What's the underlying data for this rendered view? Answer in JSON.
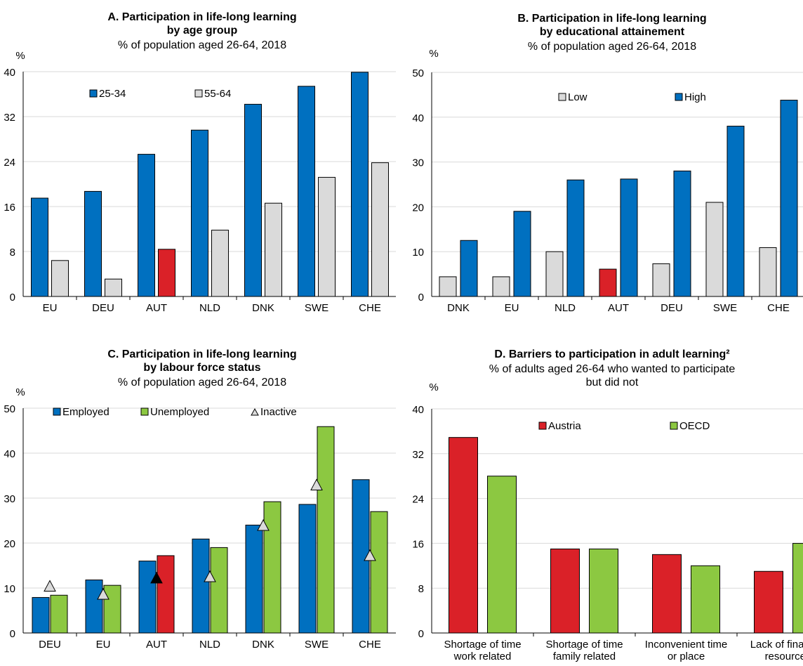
{
  "colors": {
    "blue": "#0070C0",
    "grey": "#DADADA",
    "red": "#DA2128",
    "green": "#8CC841",
    "black": "#000000",
    "gridline": "#D9D9D9",
    "axis": "#000000"
  },
  "chart_data": [
    {
      "id": "A",
      "type": "bar",
      "title_lines": [
        "A. Participation in life-long learning",
        "by age group"
      ],
      "subtitle_lines": [
        "% of population aged 26-64, 2018"
      ],
      "unit": "%",
      "ylim": [
        0,
        40
      ],
      "yticks": [
        0,
        8,
        16,
        24,
        32,
        40
      ],
      "grid": true,
      "legend_position": "top",
      "categories": [
        "EU",
        "DEU",
        "AUT",
        "NLD",
        "DNK",
        "SWE",
        "CHE"
      ],
      "series": [
        {
          "name": "25-34",
          "color": "blue",
          "values": [
            17.5,
            18.7,
            25.3,
            29.6,
            34.2,
            37.4,
            39.9
          ]
        },
        {
          "name": "55-64",
          "color": "grey",
          "values": [
            6.4,
            3.1,
            8.4,
            11.8,
            16.6,
            21.2,
            23.8
          ],
          "highlight": {
            "index": 2,
            "color": "red"
          }
        }
      ]
    },
    {
      "id": "B",
      "type": "bar",
      "title_lines": [
        "B. Participation in life-long learning",
        "by educational attainement"
      ],
      "subtitle_lines": [
        "% of population aged 26-64, 2018"
      ],
      "unit": "%",
      "ylim": [
        0,
        50
      ],
      "yticks": [
        0,
        10,
        20,
        30,
        40,
        50
      ],
      "grid": true,
      "legend_position": "top",
      "categories": [
        "DNK",
        "EU",
        "NLD",
        "AUT",
        "DEU",
        "SWE",
        "CHE"
      ],
      "series": [
        {
          "name": "Low",
          "color": "grey",
          "values": [
            4.4,
            4.4,
            10.0,
            6.1,
            7.3,
            21.0,
            10.9
          ],
          "highlight": {
            "index": 3,
            "color": "red"
          }
        },
        {
          "name": "High",
          "color": "blue",
          "values": [
            12.5,
            19.0,
            26.0,
            26.2,
            28.0,
            38.0,
            43.8
          ]
        }
      ]
    },
    {
      "id": "C",
      "type": "bar",
      "title_lines": [
        "C. Participation in life-long learning",
        "by labour force status"
      ],
      "subtitle_lines": [
        "% of population aged 26-64, 2018"
      ],
      "unit": "%",
      "ylim": [
        0,
        50
      ],
      "yticks": [
        0,
        10,
        20,
        30,
        40,
        50
      ],
      "grid": true,
      "legend_position": "top",
      "categories": [
        "DEU",
        "EU",
        "AUT",
        "NLD",
        "DNK",
        "SWE",
        "CHE"
      ],
      "series": [
        {
          "name": "Employed",
          "color": "blue",
          "values": [
            7.9,
            11.8,
            16.0,
            20.9,
            24.0,
            28.6,
            34.1
          ]
        },
        {
          "name": "Unemployed",
          "color": "green",
          "values": [
            8.4,
            10.6,
            17.2,
            19.0,
            29.2,
            45.9,
            27.0
          ],
          "highlight": {
            "index": 2,
            "color": "red"
          }
        }
      ],
      "markers": {
        "name": "Inactive",
        "color": "grey",
        "values": [
          10.4,
          8.6,
          12.2,
          12.5,
          23.9,
          32.9,
          17.2
        ],
        "highlight": {
          "index": 2,
          "color": "black"
        }
      }
    },
    {
      "id": "D",
      "type": "bar",
      "title_lines": [
        "D. Barriers to participation in adult learning²"
      ],
      "subtitle_lines": [
        "% of adults aged 26-64 who wanted to participate",
        "but did not"
      ],
      "unit": "%",
      "ylim": [
        0,
        40
      ],
      "yticks": [
        0,
        8,
        16,
        24,
        32,
        40
      ],
      "grid": true,
      "legend_position": "top",
      "categories": [
        [
          "Shortage of time",
          "work related"
        ],
        [
          "Shortage of time",
          "family related"
        ],
        [
          "Inconvenient time",
          "or place"
        ],
        [
          "Lack of financial",
          "resources"
        ]
      ],
      "series": [
        {
          "name": "Austria",
          "color": "red",
          "values": [
            34.9,
            15.0,
            14.0,
            11.0
          ]
        },
        {
          "name": "OECD",
          "color": "green",
          "values": [
            28.0,
            15.0,
            12.0,
            16.0
          ]
        }
      ]
    }
  ]
}
